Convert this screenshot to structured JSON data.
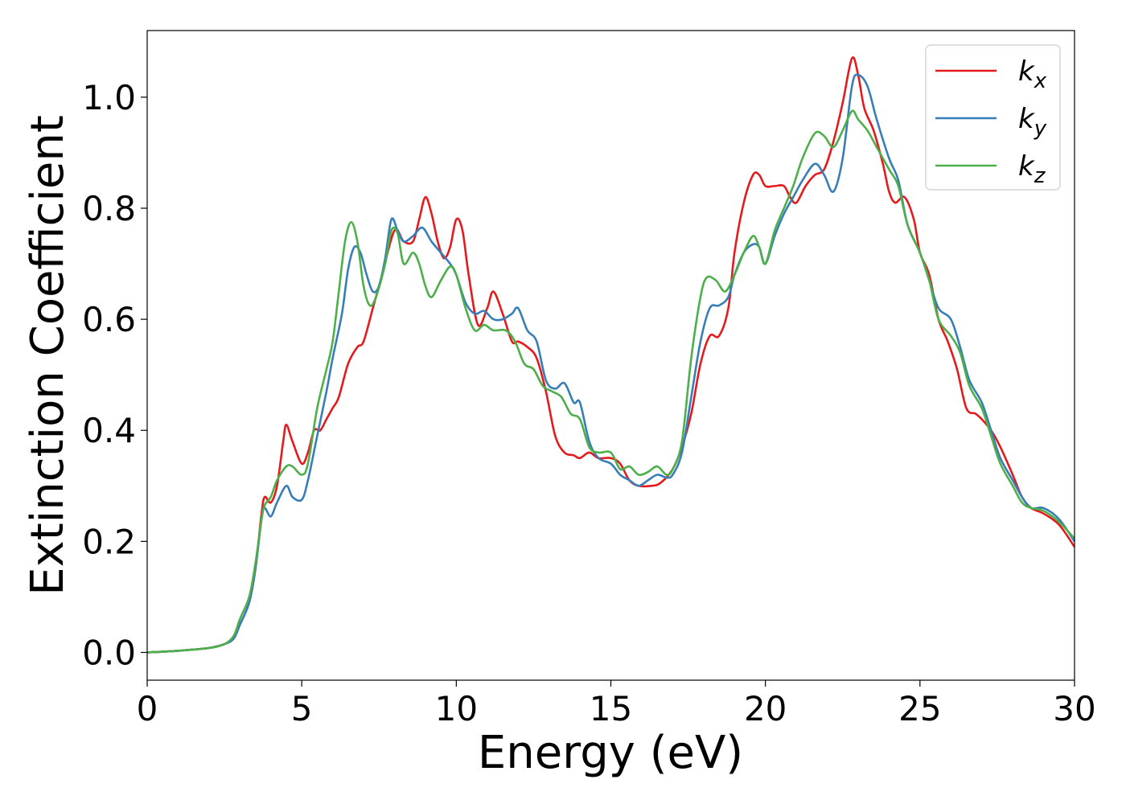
{
  "chart_data": {
    "type": "line",
    "title": "",
    "xlabel": "Energy (eV)",
    "ylabel": "Extinction Coefficient",
    "xlim": [
      0,
      30
    ],
    "ylim": [
      -0.05,
      1.12
    ],
    "xticks": [
      0,
      5,
      10,
      15,
      20,
      25,
      30
    ],
    "yticks": [
      0.0,
      0.2,
      0.4,
      0.6,
      0.8,
      1.0
    ],
    "xtick_labels": [
      "0",
      "5",
      "10",
      "15",
      "20",
      "25",
      "30"
    ],
    "ytick_labels": [
      "0.0",
      "0.2",
      "0.4",
      "0.6",
      "0.8",
      "1.0"
    ],
    "grid": false,
    "legend_position": "top-right",
    "series": [
      {
        "name": "k_x",
        "legend_base": "k",
        "legend_sub": "x",
        "color": "#e41a1c",
        "points": [
          [
            0,
            0.0
          ],
          [
            1,
            0.003
          ],
          [
            2,
            0.008
          ],
          [
            2.5,
            0.015
          ],
          [
            2.8,
            0.025
          ],
          [
            3,
            0.05
          ],
          [
            3.3,
            0.09
          ],
          [
            3.5,
            0.15
          ],
          [
            3.7,
            0.25
          ],
          [
            3.8,
            0.28
          ],
          [
            4,
            0.27
          ],
          [
            4.2,
            0.3
          ],
          [
            4.4,
            0.38
          ],
          [
            4.5,
            0.41
          ],
          [
            4.7,
            0.38
          ],
          [
            5,
            0.34
          ],
          [
            5.2,
            0.36
          ],
          [
            5.4,
            0.4
          ],
          [
            5.6,
            0.4
          ],
          [
            5.8,
            0.42
          ],
          [
            6,
            0.44
          ],
          [
            6.2,
            0.46
          ],
          [
            6.5,
            0.52
          ],
          [
            6.8,
            0.55
          ],
          [
            7,
            0.56
          ],
          [
            7.3,
            0.62
          ],
          [
            7.6,
            0.68
          ],
          [
            8,
            0.76
          ],
          [
            8.3,
            0.74
          ],
          [
            8.6,
            0.74
          ],
          [
            8.8,
            0.78
          ],
          [
            9,
            0.82
          ],
          [
            9.2,
            0.79
          ],
          [
            9.4,
            0.74
          ],
          [
            9.6,
            0.71
          ],
          [
            9.8,
            0.73
          ],
          [
            10,
            0.78
          ],
          [
            10.2,
            0.76
          ],
          [
            10.4,
            0.68
          ],
          [
            10.7,
            0.59
          ],
          [
            11,
            0.62
          ],
          [
            11.2,
            0.65
          ],
          [
            11.5,
            0.61
          ],
          [
            11.8,
            0.56
          ],
          [
            12,
            0.56
          ],
          [
            12.3,
            0.55
          ],
          [
            12.6,
            0.53
          ],
          [
            12.9,
            0.47
          ],
          [
            13.2,
            0.39
          ],
          [
            13.5,
            0.36
          ],
          [
            13.8,
            0.355
          ],
          [
            14,
            0.35
          ],
          [
            14.3,
            0.36
          ],
          [
            14.6,
            0.35
          ],
          [
            15,
            0.35
          ],
          [
            15.3,
            0.34
          ],
          [
            15.6,
            0.31
          ],
          [
            15.9,
            0.3
          ],
          [
            16.3,
            0.3
          ],
          [
            16.6,
            0.305
          ],
          [
            17,
            0.33
          ],
          [
            17.3,
            0.37
          ],
          [
            17.6,
            0.43
          ],
          [
            17.9,
            0.52
          ],
          [
            18.2,
            0.57
          ],
          [
            18.5,
            0.57
          ],
          [
            18.8,
            0.62
          ],
          [
            19,
            0.72
          ],
          [
            19.3,
            0.81
          ],
          [
            19.6,
            0.86
          ],
          [
            19.8,
            0.86
          ],
          [
            20,
            0.84
          ],
          [
            20.3,
            0.84
          ],
          [
            20.6,
            0.84
          ],
          [
            20.8,
            0.82
          ],
          [
            21,
            0.81
          ],
          [
            21.3,
            0.84
          ],
          [
            21.6,
            0.86
          ],
          [
            21.9,
            0.87
          ],
          [
            22.2,
            0.92
          ],
          [
            22.5,
            0.99
          ],
          [
            22.8,
            1.07
          ],
          [
            23,
            1.04
          ],
          [
            23.2,
            0.98
          ],
          [
            23.5,
            0.94
          ],
          [
            23.8,
            0.88
          ],
          [
            24,
            0.83
          ],
          [
            24.2,
            0.81
          ],
          [
            24.5,
            0.82
          ],
          [
            24.8,
            0.78
          ],
          [
            25,
            0.72
          ],
          [
            25.3,
            0.68
          ],
          [
            25.6,
            0.6
          ],
          [
            25.9,
            0.56
          ],
          [
            26.2,
            0.51
          ],
          [
            26.5,
            0.44
          ],
          [
            26.8,
            0.43
          ],
          [
            27,
            0.42
          ],
          [
            27.3,
            0.4
          ],
          [
            27.6,
            0.37
          ],
          [
            28,
            0.32
          ],
          [
            28.3,
            0.28
          ],
          [
            28.6,
            0.26
          ],
          [
            29,
            0.25
          ],
          [
            29.5,
            0.23
          ],
          [
            30,
            0.19
          ]
        ]
      },
      {
        "name": "k_y",
        "legend_base": "k",
        "legend_sub": "y",
        "color": "#377eb8",
        "points": [
          [
            0,
            0.0
          ],
          [
            1,
            0.003
          ],
          [
            2,
            0.008
          ],
          [
            2.5,
            0.015
          ],
          [
            2.8,
            0.025
          ],
          [
            3,
            0.05
          ],
          [
            3.3,
            0.09
          ],
          [
            3.5,
            0.15
          ],
          [
            3.7,
            0.24
          ],
          [
            3.8,
            0.26
          ],
          [
            4,
            0.245
          ],
          [
            4.2,
            0.27
          ],
          [
            4.5,
            0.3
          ],
          [
            4.7,
            0.28
          ],
          [
            5,
            0.275
          ],
          [
            5.2,
            0.31
          ],
          [
            5.5,
            0.39
          ],
          [
            5.8,
            0.47
          ],
          [
            6,
            0.53
          ],
          [
            6.3,
            0.61
          ],
          [
            6.5,
            0.69
          ],
          [
            6.7,
            0.73
          ],
          [
            6.9,
            0.72
          ],
          [
            7.1,
            0.68
          ],
          [
            7.3,
            0.65
          ],
          [
            7.5,
            0.66
          ],
          [
            7.7,
            0.71
          ],
          [
            7.9,
            0.78
          ],
          [
            8.1,
            0.76
          ],
          [
            8.3,
            0.74
          ],
          [
            8.6,
            0.75
          ],
          [
            8.9,
            0.765
          ],
          [
            9.2,
            0.74
          ],
          [
            9.5,
            0.72
          ],
          [
            9.8,
            0.7
          ],
          [
            10,
            0.68
          ],
          [
            10.3,
            0.63
          ],
          [
            10.6,
            0.61
          ],
          [
            10.9,
            0.615
          ],
          [
            11.2,
            0.6
          ],
          [
            11.5,
            0.6
          ],
          [
            11.8,
            0.61
          ],
          [
            12,
            0.62
          ],
          [
            12.3,
            0.58
          ],
          [
            12.6,
            0.56
          ],
          [
            12.9,
            0.49
          ],
          [
            13.2,
            0.475
          ],
          [
            13.5,
            0.485
          ],
          [
            13.8,
            0.45
          ],
          [
            14,
            0.45
          ],
          [
            14.3,
            0.38
          ],
          [
            14.6,
            0.35
          ],
          [
            15,
            0.34
          ],
          [
            15.3,
            0.32
          ],
          [
            15.6,
            0.31
          ],
          [
            15.9,
            0.3
          ],
          [
            16.2,
            0.31
          ],
          [
            16.5,
            0.32
          ],
          [
            16.8,
            0.315
          ],
          [
            17,
            0.32
          ],
          [
            17.3,
            0.36
          ],
          [
            17.6,
            0.46
          ],
          [
            17.9,
            0.56
          ],
          [
            18.2,
            0.62
          ],
          [
            18.5,
            0.625
          ],
          [
            18.8,
            0.64
          ],
          [
            19,
            0.68
          ],
          [
            19.3,
            0.72
          ],
          [
            19.6,
            0.735
          ],
          [
            19.8,
            0.73
          ],
          [
            20,
            0.7
          ],
          [
            20.3,
            0.75
          ],
          [
            20.6,
            0.79
          ],
          [
            20.9,
            0.82
          ],
          [
            21.2,
            0.85
          ],
          [
            21.6,
            0.88
          ],
          [
            21.9,
            0.86
          ],
          [
            22.2,
            0.83
          ],
          [
            22.5,
            0.89
          ],
          [
            22.8,
            1.02
          ],
          [
            23,
            1.04
          ],
          [
            23.3,
            1.02
          ],
          [
            23.6,
            0.96
          ],
          [
            24,
            0.89
          ],
          [
            24.3,
            0.85
          ],
          [
            24.6,
            0.77
          ],
          [
            25,
            0.72
          ],
          [
            25.3,
            0.67
          ],
          [
            25.6,
            0.62
          ],
          [
            26,
            0.6
          ],
          [
            26.3,
            0.55
          ],
          [
            26.6,
            0.49
          ],
          [
            27,
            0.45
          ],
          [
            27.3,
            0.4
          ],
          [
            27.6,
            0.35
          ],
          [
            28,
            0.31
          ],
          [
            28.3,
            0.28
          ],
          [
            28.6,
            0.26
          ],
          [
            29,
            0.26
          ],
          [
            29.5,
            0.24
          ],
          [
            30,
            0.2
          ]
        ]
      },
      {
        "name": "k_z",
        "legend_base": "k",
        "legend_sub": "z",
        "color": "#4daf4a",
        "points": [
          [
            0,
            0.0
          ],
          [
            1,
            0.003
          ],
          [
            2,
            0.008
          ],
          [
            2.5,
            0.015
          ],
          [
            2.8,
            0.03
          ],
          [
            3,
            0.06
          ],
          [
            3.3,
            0.1
          ],
          [
            3.5,
            0.16
          ],
          [
            3.7,
            0.24
          ],
          [
            3.8,
            0.265
          ],
          [
            4,
            0.28
          ],
          [
            4.2,
            0.31
          ],
          [
            4.5,
            0.335
          ],
          [
            4.7,
            0.335
          ],
          [
            5,
            0.32
          ],
          [
            5.2,
            0.34
          ],
          [
            5.5,
            0.44
          ],
          [
            5.8,
            0.51
          ],
          [
            6,
            0.56
          ],
          [
            6.2,
            0.65
          ],
          [
            6.4,
            0.74
          ],
          [
            6.6,
            0.775
          ],
          [
            6.8,
            0.74
          ],
          [
            7,
            0.66
          ],
          [
            7.2,
            0.625
          ],
          [
            7.4,
            0.64
          ],
          [
            7.7,
            0.7
          ],
          [
            7.9,
            0.76
          ],
          [
            8.1,
            0.755
          ],
          [
            8.3,
            0.7
          ],
          [
            8.6,
            0.72
          ],
          [
            8.8,
            0.7
          ],
          [
            9,
            0.66
          ],
          [
            9.2,
            0.64
          ],
          [
            9.5,
            0.67
          ],
          [
            9.8,
            0.695
          ],
          [
            10,
            0.68
          ],
          [
            10.3,
            0.62
          ],
          [
            10.6,
            0.58
          ],
          [
            10.9,
            0.59
          ],
          [
            11.2,
            0.58
          ],
          [
            11.6,
            0.58
          ],
          [
            11.9,
            0.56
          ],
          [
            12.2,
            0.52
          ],
          [
            12.5,
            0.51
          ],
          [
            12.8,
            0.48
          ],
          [
            13.1,
            0.47
          ],
          [
            13.4,
            0.46
          ],
          [
            13.7,
            0.43
          ],
          [
            14,
            0.42
          ],
          [
            14.3,
            0.37
          ],
          [
            14.6,
            0.36
          ],
          [
            15,
            0.36
          ],
          [
            15.3,
            0.33
          ],
          [
            15.6,
            0.335
          ],
          [
            15.9,
            0.32
          ],
          [
            16.2,
            0.325
          ],
          [
            16.5,
            0.335
          ],
          [
            16.8,
            0.32
          ],
          [
            17,
            0.33
          ],
          [
            17.3,
            0.38
          ],
          [
            17.6,
            0.53
          ],
          [
            17.9,
            0.64
          ],
          [
            18.1,
            0.675
          ],
          [
            18.4,
            0.67
          ],
          [
            18.7,
            0.65
          ],
          [
            19,
            0.68
          ],
          [
            19.3,
            0.72
          ],
          [
            19.6,
            0.75
          ],
          [
            19.8,
            0.73
          ],
          [
            20,
            0.7
          ],
          [
            20.3,
            0.76
          ],
          [
            20.6,
            0.8
          ],
          [
            20.9,
            0.84
          ],
          [
            21.2,
            0.89
          ],
          [
            21.6,
            0.935
          ],
          [
            21.9,
            0.93
          ],
          [
            22.2,
            0.91
          ],
          [
            22.5,
            0.94
          ],
          [
            22.8,
            0.975
          ],
          [
            23,
            0.96
          ],
          [
            23.3,
            0.94
          ],
          [
            23.6,
            0.91
          ],
          [
            24,
            0.87
          ],
          [
            24.3,
            0.84
          ],
          [
            24.6,
            0.77
          ],
          [
            25,
            0.72
          ],
          [
            25.3,
            0.67
          ],
          [
            25.6,
            0.6
          ],
          [
            26,
            0.57
          ],
          [
            26.3,
            0.54
          ],
          [
            26.6,
            0.48
          ],
          [
            27,
            0.44
          ],
          [
            27.3,
            0.39
          ],
          [
            27.6,
            0.34
          ],
          [
            28,
            0.3
          ],
          [
            28.3,
            0.27
          ],
          [
            28.6,
            0.26
          ],
          [
            29,
            0.255
          ],
          [
            29.5,
            0.235
          ],
          [
            30,
            0.205
          ]
        ]
      }
    ]
  }
}
